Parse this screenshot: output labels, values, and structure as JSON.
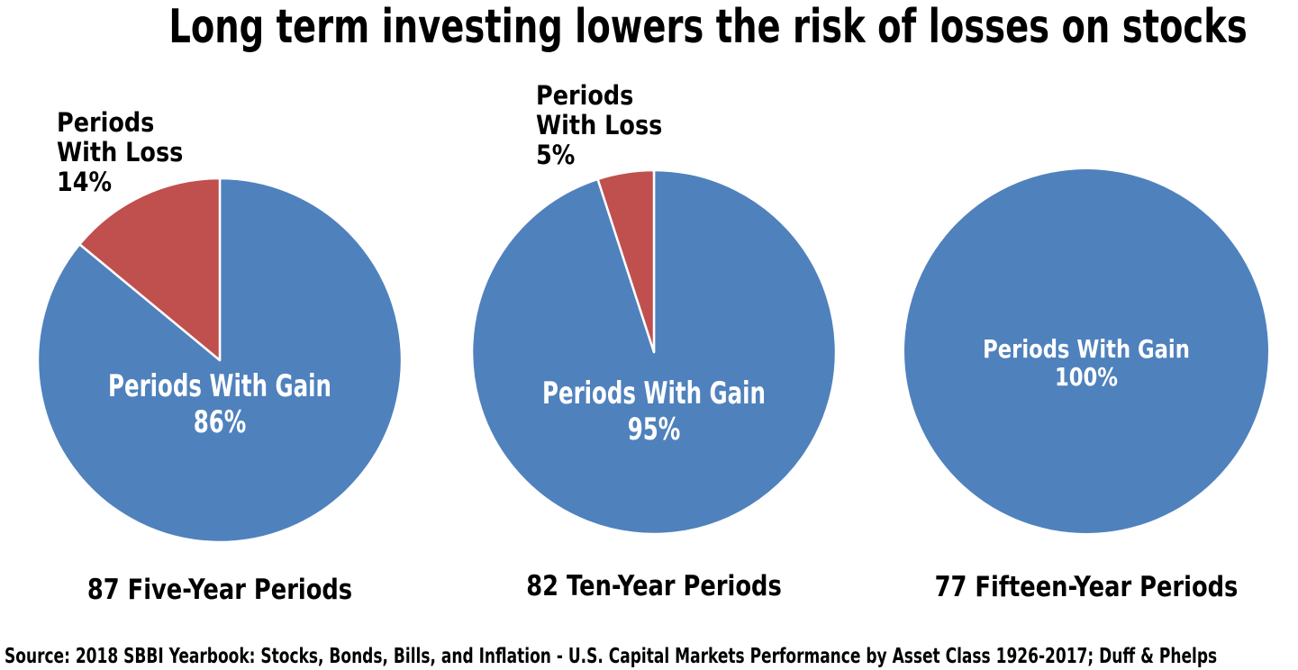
{
  "title": "Long term investing lowers the risk of losses on stocks",
  "footer": {
    "source": "Source: 2018 SBBI Yearbook:  Stocks, Bonds, Bills, and Inflation - U.S. Capital Markets Performance by Asset Class 1926-2017; Duff & Phelps"
  },
  "colors": {
    "gain": "#4F81BD",
    "loss": "#C0504D",
    "separator": "#FFFFFF",
    "background": "#FFFFFF",
    "text": "#000000",
    "gain_label_text": "#FFFFFF"
  },
  "chart_data": [
    {
      "type": "pie",
      "caption": "87 Five-Year Periods",
      "start_angle_deg": 0,
      "direction": "clockwise",
      "legend_position": "none",
      "slices": [
        {
          "name": "Periods With Gain",
          "value": 86,
          "unit": "%",
          "color": "#4F81BD"
        },
        {
          "name": "Periods With Loss",
          "value": 14,
          "unit": "%",
          "color": "#C0504D"
        }
      ],
      "gain_label_lines": [
        "Periods With Gain 86%"
      ],
      "loss_label_lines": [
        "Periods",
        "With Loss",
        "14%"
      ]
    },
    {
      "type": "pie",
      "caption": "82 Ten-Year Periods",
      "start_angle_deg": 0,
      "direction": "clockwise",
      "legend_position": "none",
      "slices": [
        {
          "name": "Periods With Gain",
          "value": 95,
          "unit": "%",
          "color": "#4F81BD"
        },
        {
          "name": "Periods With Loss",
          "value": 5,
          "unit": "%",
          "color": "#C0504D"
        }
      ],
      "gain_label_lines": [
        "Periods With Gain 95%"
      ],
      "loss_label_lines": [
        "Periods",
        "With Loss",
        "5%"
      ]
    },
    {
      "type": "pie",
      "caption": "77 Fifteen-Year Periods",
      "start_angle_deg": 0,
      "direction": "clockwise",
      "legend_position": "none",
      "slices": [
        {
          "name": "Periods With Gain",
          "value": 100,
          "unit": "%",
          "color": "#4F81BD"
        }
      ],
      "gain_label_lines": [
        "Periods With Gain",
        "100%"
      ],
      "loss_label_lines": []
    }
  ]
}
